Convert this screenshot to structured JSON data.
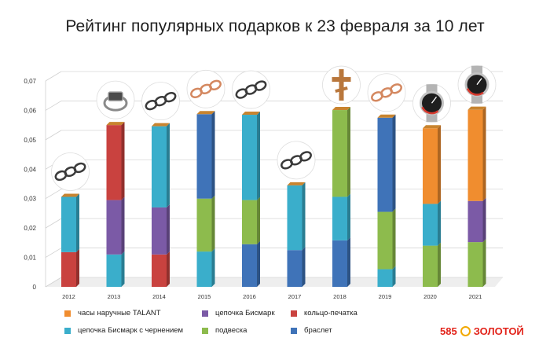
{
  "title": "Рейтинг популярных подарков к 23 февраля за 10 лет",
  "colors": {
    "watch": "#f08d2f",
    "bismarck": "#7b5aa6",
    "signet": "#c9423f",
    "bismarck_black": "#3aaecb",
    "pendant": "#8dbb4d",
    "bracelet": "#3f73b8"
  },
  "chart_data": {
    "type": "bar",
    "stacked": true,
    "categories": [
      "2012",
      "2013",
      "2014",
      "2015",
      "2016",
      "2017",
      "2018",
      "2019",
      "2020",
      "2021"
    ],
    "y_ticks": [
      "0",
      "0,01",
      "0,02",
      "0,03",
      "0,04",
      "0,05",
      "0,06",
      "0,07"
    ],
    "ylim": [
      0,
      0.07
    ],
    "series": [
      {
        "name": "браслет",
        "color_key": "bracelet",
        "values": [
          0,
          0,
          0,
          0,
          0.0145,
          0.0125,
          0.0158,
          0,
          0,
          0
        ]
      },
      {
        "name": "цепочка Бисмарк с чернением",
        "color_key": "bismarck_black",
        "values": [
          0,
          0.011,
          0,
          0.012,
          0,
          0,
          0,
          0.006,
          0,
          0
        ]
      },
      {
        "name": "кольцо-печатка",
        "color_key": "signet",
        "values": [
          0.0118,
          0,
          0.011,
          0,
          0,
          0,
          0,
          0,
          0,
          0
        ]
      },
      {
        "name": "подвеска",
        "color_key": "pendant",
        "values": [
          0,
          0,
          0,
          0.018,
          0.015,
          0,
          0,
          0.0195,
          0.014,
          0.0152
        ]
      },
      {
        "name": "цепочка Бисмарк с чернением",
        "color_key": "bismarck_black",
        "values": [
          0.0188,
          0,
          0,
          0,
          0,
          0.022,
          0.0148,
          0,
          0.0142,
          0
        ]
      },
      {
        "name": "цепочка Бисмарк",
        "color_key": "bismarck",
        "values": [
          0,
          0.0185,
          0.016,
          0,
          0,
          0,
          0,
          0,
          0,
          0.014
        ]
      },
      {
        "name": "браслет",
        "color_key": "bracelet",
        "values": [
          0,
          0,
          0,
          0.0287,
          0,
          0,
          0,
          0.032,
          0,
          0
        ]
      },
      {
        "name": "цепочка Бисмарк с чернением",
        "color_key": "bismarck_black",
        "values": [
          0,
          0,
          0.0276,
          0,
          0.029,
          0,
          0,
          0,
          0,
          0
        ]
      },
      {
        "name": "подвеска",
        "color_key": "pendant",
        "values": [
          0,
          0,
          0,
          0,
          0,
          0,
          0.0295,
          0,
          0,
          0
        ]
      },
      {
        "name": "кольцо-печатка",
        "color_key": "signet",
        "values": [
          0,
          0.0255,
          0,
          0,
          0,
          0,
          0,
          0,
          0,
          0
        ]
      },
      {
        "name": "часы наручные TALANT",
        "color_key": "watch",
        "values": [
          0,
          0,
          0,
          0,
          0,
          0,
          0,
          0,
          0.0257,
          0.031
        ]
      }
    ],
    "bar_images": [
      {
        "category": "2012",
        "icon": "chain-icon"
      },
      {
        "category": "2013",
        "icon": "ring-icon"
      },
      {
        "category": "2014",
        "icon": "chain-icon"
      },
      {
        "category": "2015",
        "icon": "gold-chain-icon"
      },
      {
        "category": "2016",
        "icon": "chain-icon"
      },
      {
        "category": "2017",
        "icon": "chain-icon"
      },
      {
        "category": "2018",
        "icon": "cross-icon"
      },
      {
        "category": "2019",
        "icon": "gold-chain-icon"
      },
      {
        "category": "2020",
        "icon": "watch-icon"
      },
      {
        "category": "2021",
        "icon": "watch-icon"
      }
    ],
    "grid": true
  },
  "legend": [
    {
      "label": "часы наручные TALANT",
      "color_key": "watch"
    },
    {
      "label": "цепочка Бисмарк",
      "color_key": "bismarck"
    },
    {
      "label": "кольцо-печатка",
      "color_key": "signet"
    },
    {
      "label": "цепочка Бисмарк с чернением",
      "color_key": "bismarck_black"
    },
    {
      "label": "подвеска",
      "color_key": "pendant"
    },
    {
      "label": "браслет",
      "color_key": "bracelet"
    }
  ],
  "brand": {
    "number": "585",
    "word": "ЗОЛОТОЙ"
  }
}
